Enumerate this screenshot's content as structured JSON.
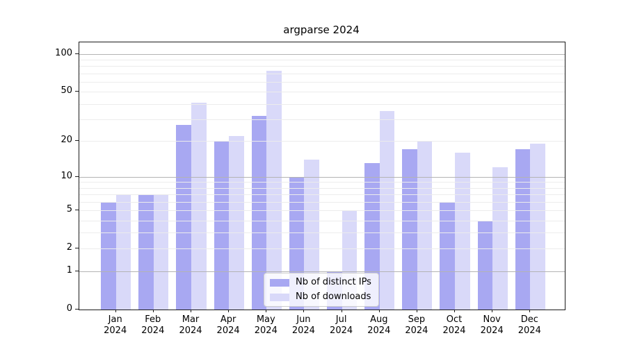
{
  "title": "argparse 2024",
  "chart_data": {
    "type": "bar",
    "title": "argparse 2024",
    "categories": [
      {
        "m": "Jan",
        "y": "2024"
      },
      {
        "m": "Feb",
        "y": "2024"
      },
      {
        "m": "Mar",
        "y": "2024"
      },
      {
        "m": "Apr",
        "y": "2024"
      },
      {
        "m": "May",
        "y": "2024"
      },
      {
        "m": "Jun",
        "y": "2024"
      },
      {
        "m": "Jul",
        "y": "2024"
      },
      {
        "m": "Aug",
        "y": "2024"
      },
      {
        "m": "Sep",
        "y": "2024"
      },
      {
        "m": "Oct",
        "y": "2024"
      },
      {
        "m": "Nov",
        "y": "2024"
      },
      {
        "m": "Dec",
        "y": "2024"
      }
    ],
    "series": [
      {
        "name": "Nb of distinct IPs",
        "color": "#a8a8f2",
        "values": [
          6,
          7,
          27,
          20,
          32,
          10,
          1,
          13,
          17,
          6,
          4,
          17
        ]
      },
      {
        "name": "Nb of downloads",
        "color": "#d9d9f9",
        "values": [
          7,
          7,
          41,
          22,
          73,
          14,
          5,
          35,
          20,
          16,
          12,
          19
        ]
      }
    ],
    "yscale": "log1p",
    "ylim": [
      0,
      123
    ],
    "yticks": [
      100,
      50,
      20,
      10,
      5,
      2,
      1,
      0
    ],
    "grid": {
      "minor": [
        2,
        3,
        4,
        5,
        6,
        7,
        8,
        9,
        20,
        30,
        40,
        50,
        60,
        70,
        80,
        90
      ],
      "major": [
        1,
        10,
        100
      ]
    },
    "legend_position": "lower center inside",
    "colors": {
      "minor_grid": "#ececec",
      "major_grid": "#b3b3b3",
      "spine": "#1a1a1a"
    }
  }
}
